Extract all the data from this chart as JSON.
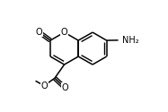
{
  "bg_color": "#ffffff",
  "line_color": "#000000",
  "line_width": 1.1,
  "text_color": "#000000",
  "font_size": 7.0,
  "figsize": [
    1.87,
    1.25
  ],
  "dpi": 100,
  "xlim": [
    -0.05,
    1.05
  ],
  "ylim": [
    -0.05,
    1.05
  ]
}
